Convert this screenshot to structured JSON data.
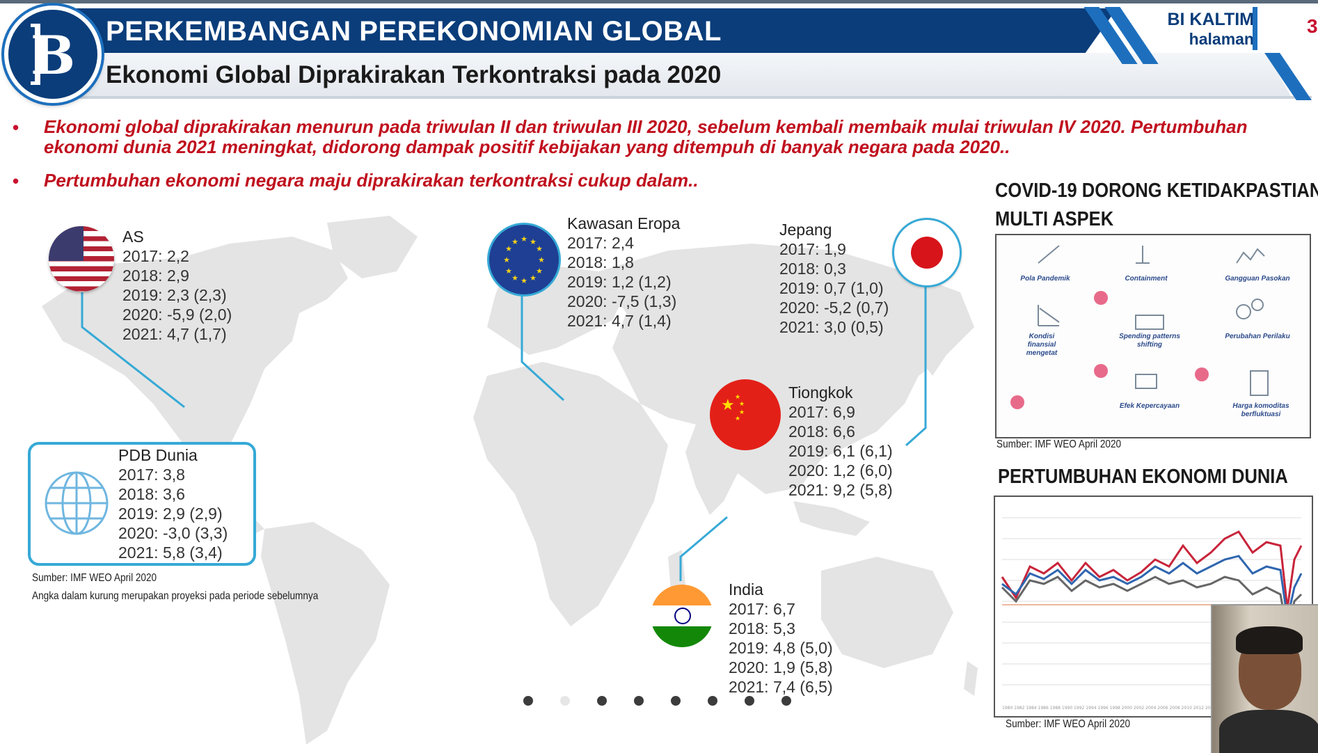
{
  "header": {
    "title": "PERKEMBANGAN PEREKONOMIAN GLOBAL",
    "subtitle": "Ekonomi Global Diprakirakan Terkontraksi pada 2020",
    "brand": "BI KALTIM",
    "brand_sub": "halaman",
    "page_number": "3"
  },
  "bullets": [
    {
      "line1": "Ekonomi global diprakirakan menurun pada triwulan II dan triwulan III 2020, sebelum kembali membaik mulai triwulan IV 2020. Pertumbuhan",
      "line2": "ekonomi dunia 2021 meningkat, didorong dampak positif kebijakan yang ditempuh di banyak negara pada 2020.."
    },
    {
      "line1": "Pertumbuhan ekonomi negara maju diprakirakan terkontraksi cukup dalam.."
    }
  ],
  "regions": {
    "as": {
      "name": "AS",
      "rows": [
        "2017: 2,2",
        "2018: 2,9",
        "2019: 2,3 (2,3)",
        "2020: -5,9 (2,0)",
        "2021: 4,7 (1,7)"
      ]
    },
    "eropa": {
      "name": "Kawasan Eropa",
      "rows": [
        "2017: 2,4",
        "2018: 1,8",
        "2019: 1,2 (1,2)",
        "2020: -7,5 (1,3)",
        "2021: 4,7 (1,4)"
      ]
    },
    "jepang": {
      "name": "Jepang",
      "rows": [
        "2017: 1,9",
        "2018: 0,3",
        "2019: 0,7 (1,0)",
        "2020: -5,2 (0,7)",
        "2021: 3,0 (0,5)"
      ]
    },
    "tiongkok": {
      "name": "Tiongkok",
      "rows": [
        "2017: 6,9",
        "2018: 6,6",
        "2019: 6,1 (6,1)",
        "2020: 1,2 (6,0)",
        "2021: 9,2 (5,8)"
      ]
    },
    "india": {
      "name": "India",
      "rows": [
        "2017: 6,7",
        "2018: 5,3",
        "2019: 4,8 (5,0)",
        "2020: 1,9 (5,8)",
        "2021: 7,4 (6,5)"
      ]
    },
    "dunia": {
      "name": "PDB Dunia",
      "rows": [
        "2017: 3,8",
        "2018: 3,6",
        "2019: 2,9 (2,9)",
        "2020: -3,0 (3,3)",
        "2021: 5,8 (3,4)"
      ]
    }
  },
  "map_source": "Sumber: IMF WEO April 2020",
  "map_note": "Angka dalam kurung merupakan proyeksi pada periode sebelumnya",
  "covid_panel": {
    "title_line1": "COVID-19 DORONG KETIDAKPASTIAN",
    "title_line2": "MULTI ASPEK",
    "labels": [
      "Pola Pandemik",
      "Containment",
      "Gangguan Pasokan",
      "Kondisi finansial mengetat",
      "Spending patterns shifting",
      "Perubahan Perilaku",
      "Efek Kepercayaan",
      "Harga komoditas berfluktuasi"
    ],
    "source": "Sumber: IMF WEO April 2020"
  },
  "growth_panel": {
    "title": "PERTUMBUHAN EKONOMI DUNIA",
    "source": "Sumber: IMF WEO April 2020"
  },
  "colors": {
    "header_dark": "#0a3d7a",
    "accent_blue": "#1d6fbd",
    "bullet_red": "#c0101e",
    "connector": "#36a9d6"
  },
  "pager": {
    "count": 8,
    "active_index": 1
  }
}
